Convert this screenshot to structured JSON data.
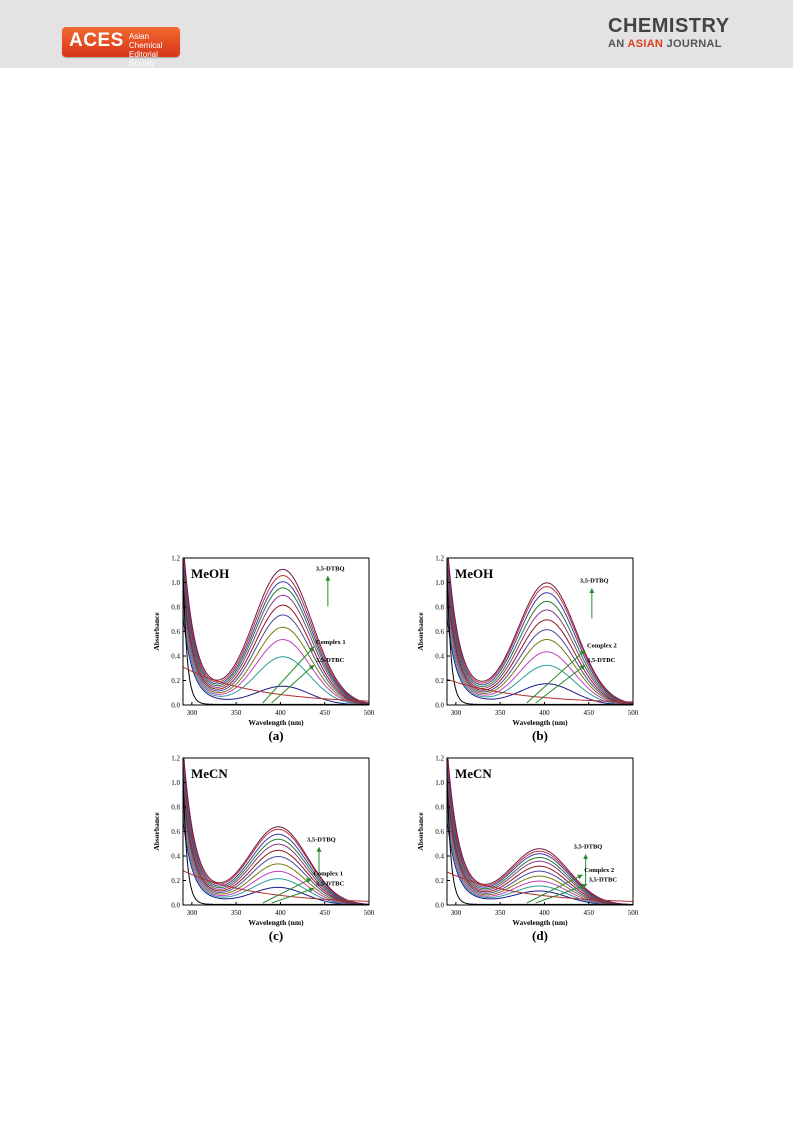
{
  "header": {
    "logo_text": "ACES",
    "logo_line1": "Asian Chemical",
    "logo_line2": "Editorial Society",
    "journal_line1": "CHEMISTRY",
    "journal_line2_prefix": "AN",
    "journal_line2_accent": "ASIAN",
    "journal_line2_suffix": "JOURNAL"
  },
  "chart_data": [
    {
      "type": "line",
      "panel_label": "(a)",
      "solvent_label": "MeOH",
      "xlabel": "Wavelength (nm)",
      "ylabel": "Absorbance",
      "xlim": [
        290,
        500
      ],
      "ylim": [
        0,
        1.2
      ],
      "xticks": [
        300,
        350,
        400,
        450,
        500
      ],
      "yticks": [
        0.0,
        0.2,
        0.4,
        0.6,
        0.8,
        1.0,
        1.2
      ],
      "peak_nm": 403,
      "series_peaks": [
        0.15,
        0.39,
        0.53,
        0.63,
        0.73,
        0.81,
        0.89,
        0.95,
        1.0,
        1.05,
        1.1
      ],
      "uv_tail": 1.1,
      "complex_max": 0.3,
      "annotations": [
        {
          "text": "3,5-DTBQ",
          "x": 440,
          "y": 1.1
        },
        {
          "text": "Complex 1",
          "x": 440,
          "y": 0.5
        },
        {
          "text": "3,5-DTBC",
          "x": 440,
          "y": 0.35
        }
      ]
    },
    {
      "type": "line",
      "panel_label": "(b)",
      "solvent_label": "MeOH",
      "xlabel": "Wavelength (nm)",
      "ylabel": "Absorbance",
      "xlim": [
        290,
        500
      ],
      "ylim": [
        0,
        1.2
      ],
      "xticks": [
        300,
        350,
        400,
        450,
        500
      ],
      "yticks": [
        0.0,
        0.2,
        0.4,
        0.6,
        0.8,
        1.0,
        1.2
      ],
      "peak_nm": 403,
      "series_peaks": [
        0.17,
        0.32,
        0.43,
        0.53,
        0.61,
        0.69,
        0.77,
        0.84,
        0.91,
        0.96,
        0.99
      ],
      "uv_tail": 1.1,
      "complex_max": 0.2,
      "annotations": [
        {
          "text": "3,5-DTBQ",
          "x": 440,
          "y": 1.0
        },
        {
          "text": "Complex 2",
          "x": 448,
          "y": 0.47
        },
        {
          "text": "3,5-DTBC",
          "x": 448,
          "y": 0.35
        }
      ]
    },
    {
      "type": "line",
      "panel_label": "(c)",
      "solvent_label": "MeCN",
      "xlabel": "Wavelength (nm)",
      "ylabel": "Absorbance",
      "xlim": [
        290,
        500
      ],
      "ylim": [
        0,
        1.2
      ],
      "xticks": [
        300,
        350,
        400,
        450,
        500
      ],
      "yticks": [
        0.0,
        0.2,
        0.4,
        0.6,
        0.8,
        1.0,
        1.2
      ],
      "peak_nm": 398,
      "series_peaks": [
        0.14,
        0.21,
        0.27,
        0.33,
        0.39,
        0.44,
        0.49,
        0.53,
        0.57,
        0.61,
        0.63
      ],
      "uv_tail": 1.05,
      "complex_max": 0.27,
      "annotations": [
        {
          "text": "3,5-DTBQ",
          "x": 430,
          "y": 0.52
        },
        {
          "text": "Complex 1",
          "x": 437,
          "y": 0.24
        },
        {
          "text": "3,5-DTBC",
          "x": 440,
          "y": 0.16
        }
      ]
    },
    {
      "type": "line",
      "panel_label": "(d)",
      "solvent_label": "MeCN",
      "xlabel": "Wavelength (nm)",
      "ylabel": "Absorbance",
      "xlim": [
        290,
        500
      ],
      "ylim": [
        0,
        1.2
      ],
      "xticks": [
        300,
        350,
        400,
        450,
        500
      ],
      "yticks": [
        0.0,
        0.2,
        0.4,
        0.6,
        0.8,
        1.0,
        1.2
      ],
      "peak_nm": 395,
      "series_peaks": [
        0.11,
        0.15,
        0.19,
        0.23,
        0.27,
        0.31,
        0.35,
        0.38,
        0.41,
        0.43,
        0.45
      ],
      "uv_tail": 1.05,
      "complex_max": 0.26,
      "annotations": [
        {
          "text": "3,5-DTBQ",
          "x": 433,
          "y": 0.46
        },
        {
          "text": "Complex 2",
          "x": 445,
          "y": 0.27
        },
        {
          "text": "3,5-DTBC",
          "x": 450,
          "y": 0.19
        }
      ]
    }
  ],
  "series_colors": [
    "#1a1a8c",
    "#2d9b9b",
    "#c040c0",
    "#7a7a10",
    "#4a4aa0",
    "#8a1a1a",
    "#8a3a8a",
    "#2a7a2a",
    "#3a3ab0",
    "#c03030",
    "#6a1a4a"
  ],
  "ref_color": "#000000",
  "complex_color": "#b03030",
  "arrow_color": "#2a8a2a"
}
